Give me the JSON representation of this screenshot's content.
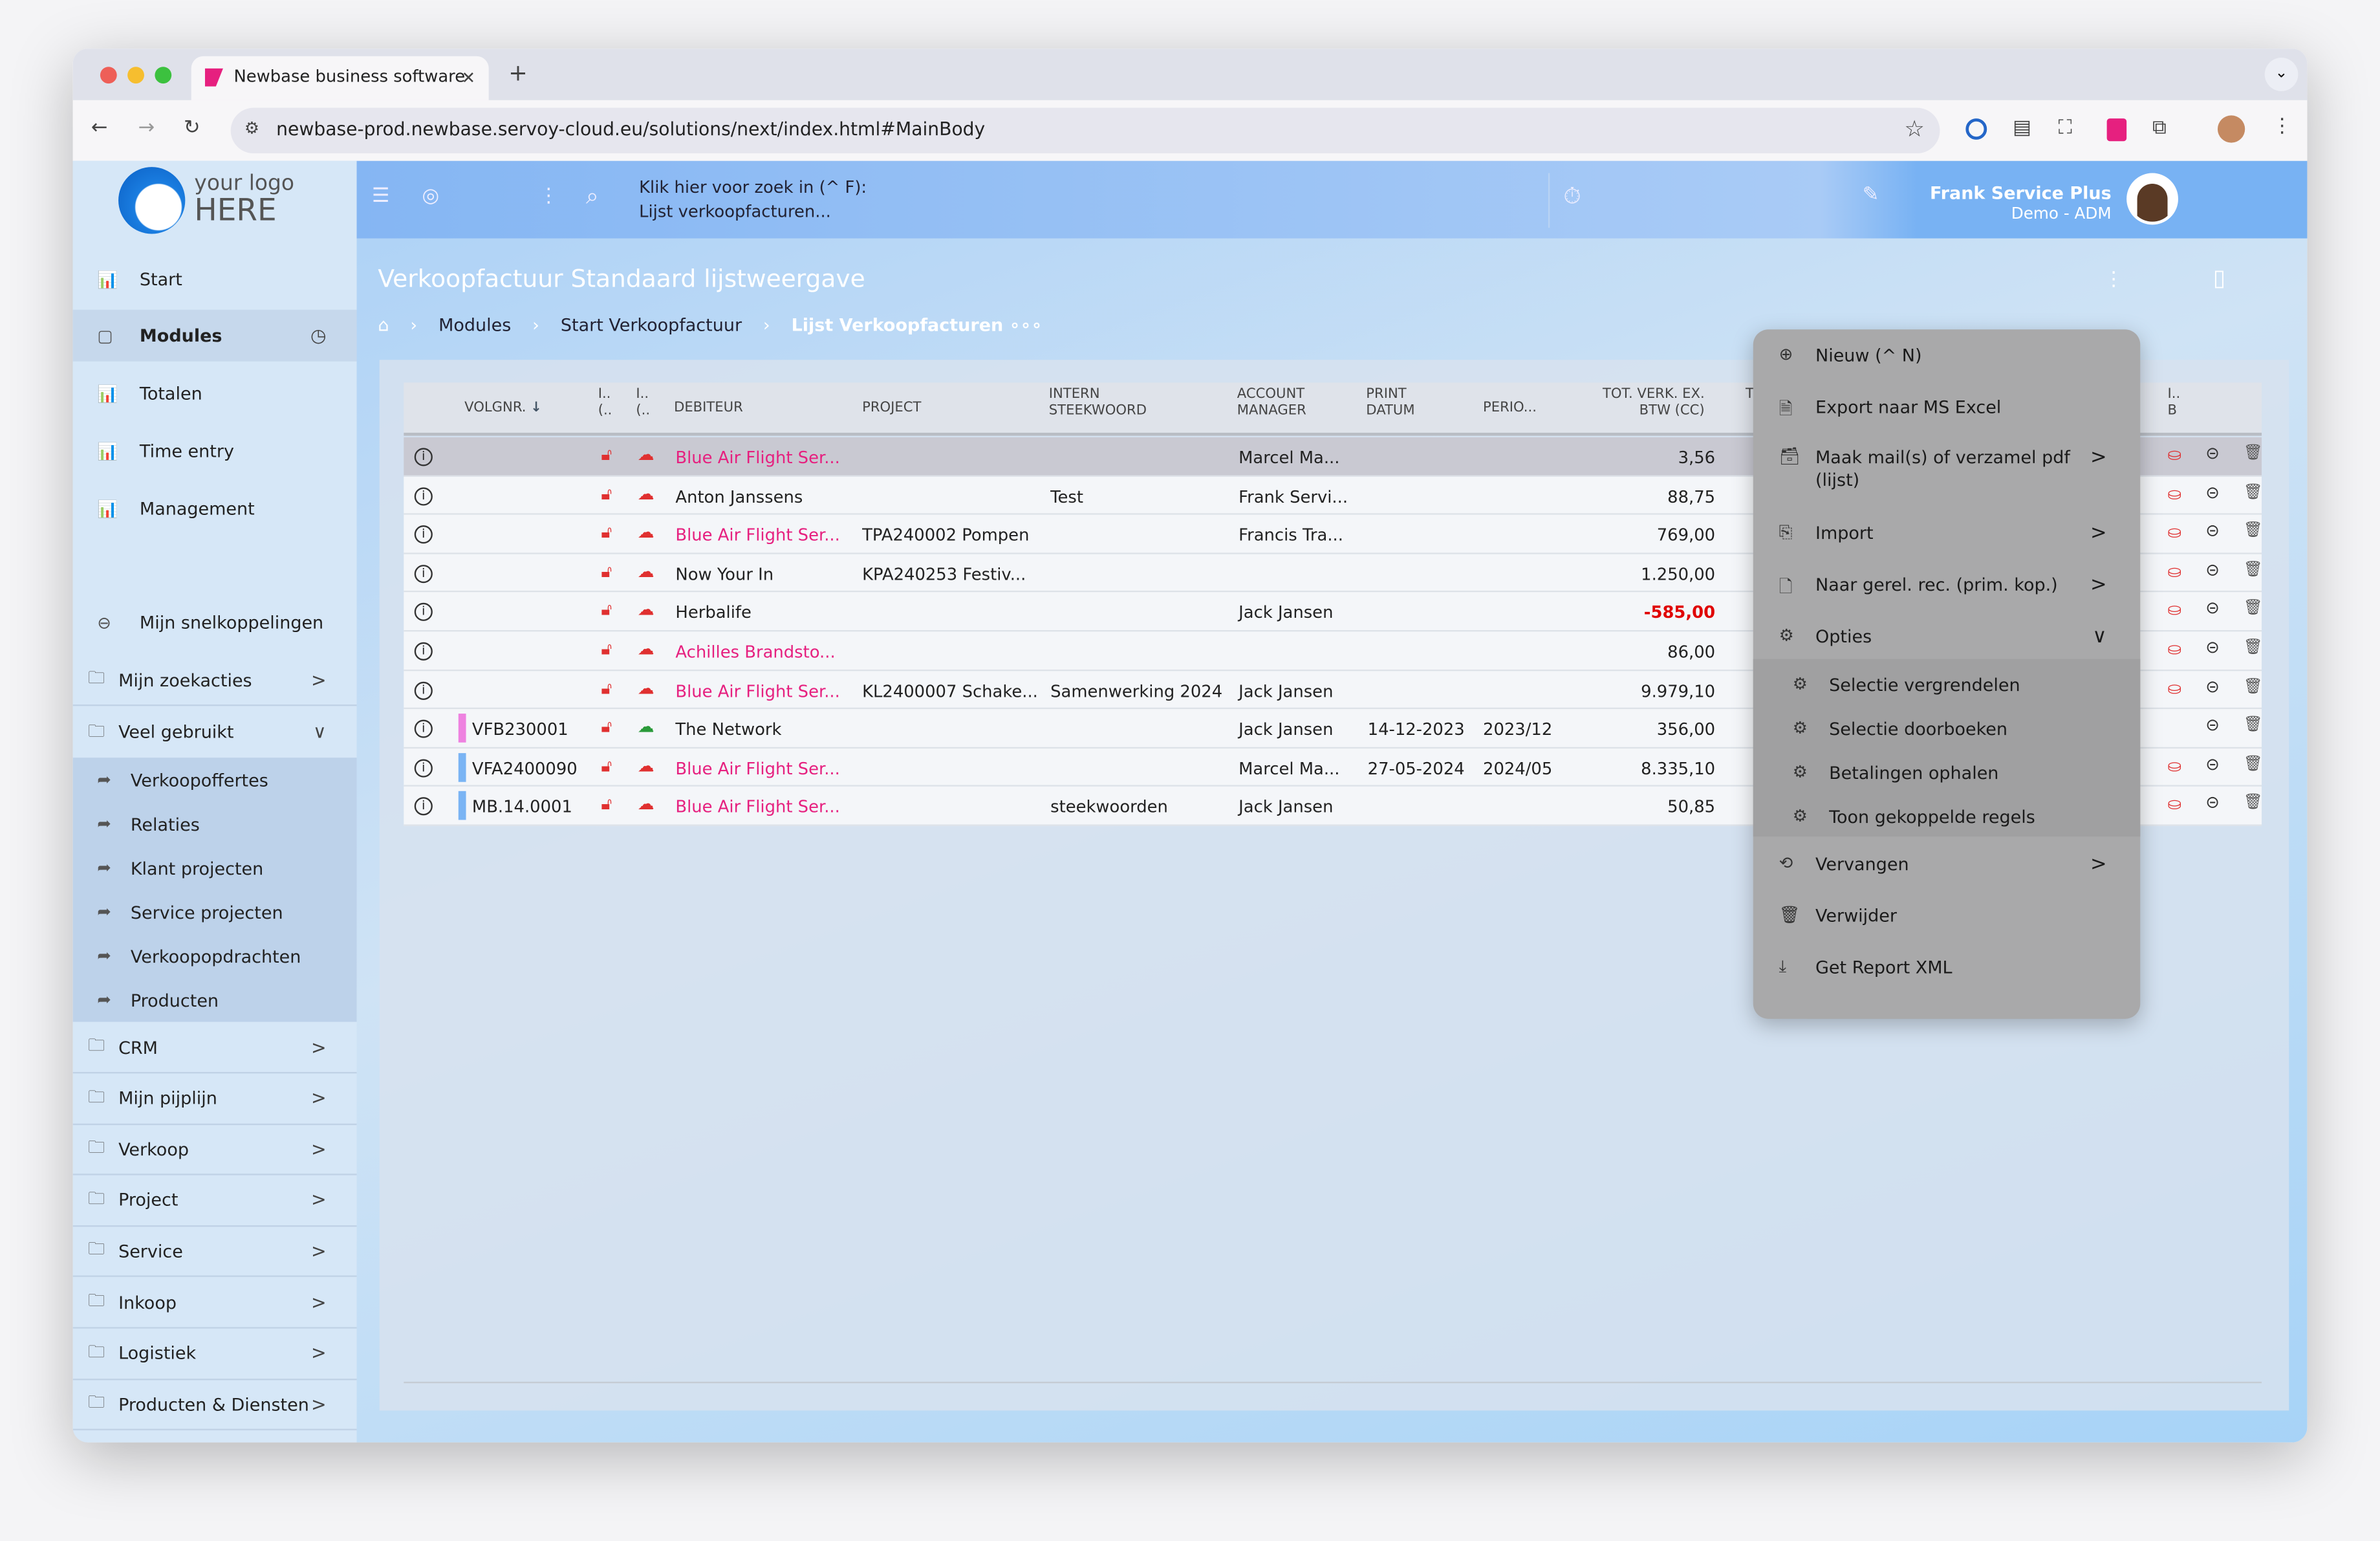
{
  "browser": {
    "tab_title": "Newbase business software",
    "url": "newbase-prod.newbase.servoy-cloud.eu/solutions/next/index.html#MainBody"
  },
  "logo": {
    "line1": "your logo",
    "line2": "HERE"
  },
  "header": {
    "search_hint": "Klik hier voor zoek in (^ F):",
    "search_context": "Lijst verkoopfacturen...",
    "user_name": "Frank Service Plus",
    "user_role": "Demo - ADM"
  },
  "sidebar": {
    "top": [
      {
        "label": "Start"
      },
      {
        "label": "Modules"
      },
      {
        "label": "Totalen"
      },
      {
        "label": "Time entry"
      },
      {
        "label": "Management"
      }
    ],
    "shortcuts": "Mijn snelkoppelingen",
    "folders": [
      {
        "label": "Mijn zoekacties"
      },
      {
        "label": "Veel gebruikt"
      }
    ],
    "sub": [
      {
        "label": "Verkoopoffertes"
      },
      {
        "label": "Relaties"
      },
      {
        "label": "Klant projecten"
      },
      {
        "label": "Service projecten"
      },
      {
        "label": "Verkoopopdrachten"
      },
      {
        "label": "Producten"
      }
    ],
    "groups": [
      {
        "label": "CRM"
      },
      {
        "label": "Mijn pijplijn"
      },
      {
        "label": "Verkoop"
      },
      {
        "label": "Project"
      },
      {
        "label": "Service"
      },
      {
        "label": "Inkoop"
      },
      {
        "label": "Logistiek"
      },
      {
        "label": "Producten & Diensten"
      }
    ]
  },
  "page": {
    "title": "Verkoopfactuur Standaard lijstweergave",
    "breadcrumb": [
      "Modules",
      "Start Verkoopfactuur",
      "Lijst Verkoopfacturen"
    ]
  },
  "table": {
    "headers": {
      "volgnr": "VOLGNR.",
      "c1a": "I..",
      "c1b": "(..",
      "c2a": "I..",
      "c2b": "(..",
      "debiteur": "DEBITEUR",
      "project": "PROJECT",
      "intern1": "INTERN",
      "intern2": "STEEKWOORD",
      "acc1": "ACCOUNT",
      "acc2": "MANAGER",
      "print1": "PRINT",
      "print2": "DATUM",
      "perio": "PERIO...",
      "tot1": "TOT. VERK. EX.",
      "tot2": "BTW (CC)",
      "t": "T",
      "ib1": "I..",
      "ib2": "B"
    },
    "rows": [
      {
        "volgnr": "",
        "debiteur": "Blue Air Flight Ser...",
        "pink": true,
        "project": "",
        "intern": "",
        "account": "Marcel Ma...",
        "print": "",
        "perio": "",
        "total": "3,56",
        "neg": false,
        "bar": "",
        "lock": "red",
        "selected": true,
        "coins": true
      },
      {
        "volgnr": "",
        "debiteur": "Anton Janssens",
        "pink": false,
        "project": "",
        "intern": "Test",
        "account": "Frank Servi...",
        "print": "",
        "perio": "",
        "total": "88,75",
        "neg": false,
        "bar": "",
        "lock": "red",
        "coins": true
      },
      {
        "volgnr": "",
        "debiteur": "Blue Air Flight Ser...",
        "pink": true,
        "project": "TPA240002 Pompen",
        "intern": "",
        "account": "Francis Tra...",
        "print": "",
        "perio": "",
        "total": "769,00",
        "neg": false,
        "bar": "",
        "lock": "red",
        "coins": true
      },
      {
        "volgnr": "",
        "debiteur": "Now Your In",
        "pink": false,
        "project": "KPA240253 Festiv...",
        "intern": "",
        "account": "",
        "print": "",
        "perio": "",
        "total": "1.250,00",
        "neg": false,
        "bar": "",
        "lock": "red",
        "coins": true
      },
      {
        "volgnr": "",
        "debiteur": "Herbalife",
        "pink": false,
        "project": "",
        "intern": "",
        "account": "Jack Jansen",
        "print": "",
        "perio": "",
        "total": "-585,00",
        "neg": true,
        "bar": "",
        "lock": "red",
        "coins": true
      },
      {
        "volgnr": "",
        "debiteur": "Achilles Brandsto...",
        "pink": true,
        "project": "",
        "intern": "",
        "account": "",
        "print": "",
        "perio": "",
        "total": "86,00",
        "neg": false,
        "bar": "",
        "lock": "red",
        "coins": true
      },
      {
        "volgnr": "",
        "debiteur": "Blue Air Flight Ser...",
        "pink": true,
        "project": "KL2400007 Schake...",
        "intern": "Samenwerking 2024",
        "account": "Jack Jansen",
        "print": "",
        "perio": "",
        "total": "9.979,10",
        "neg": false,
        "bar": "",
        "lock": "red",
        "coins": true
      },
      {
        "volgnr": "VFB230001",
        "debiteur": "The Network",
        "pink": false,
        "project": "",
        "intern": "",
        "account": "Jack Jansen",
        "print": "14-12-2023",
        "perio": "2023/12",
        "total": "356,00",
        "neg": false,
        "bar": "#ee82e0",
        "lock": "green",
        "coins": false
      },
      {
        "volgnr": "VFA2400090",
        "debiteur": "Blue Air Flight Ser...",
        "pink": true,
        "project": "",
        "intern": "",
        "account": "Marcel Ma...",
        "print": "27-05-2024",
        "perio": "2024/05",
        "total": "8.335,10",
        "neg": false,
        "bar": "#7ab4f4",
        "lock": "red",
        "coins": true
      },
      {
        "volgnr": "MB.14.0001",
        "debiteur": "Blue Air Flight Ser...",
        "pink": true,
        "project": "",
        "intern": "steekwoorden",
        "account": "Jack Jansen",
        "print": "",
        "perio": "",
        "total": "50,85",
        "neg": false,
        "bar": "#7ab4f4",
        "lock": "red",
        "coins": true
      }
    ]
  },
  "menu": {
    "items": [
      {
        "label": "Nieuw (^ N)",
        "icon": "plus-circle-icon"
      },
      {
        "label": "Export naar MS Excel",
        "icon": "xls-icon"
      },
      {
        "label": "Maak mail(s) of verzamel pdf",
        "label2": "(lijst)",
        "icon": "archive-icon"
      },
      {
        "label": "Import",
        "icon": "import-icon"
      },
      {
        "label": "Naar gerel. rec. (prim. kop.)",
        "icon": "search-doc-icon"
      },
      {
        "label": "Opties",
        "icon": "gear-drive-icon"
      }
    ],
    "sub": [
      {
        "label": "Selectie vergrendelen"
      },
      {
        "label": "Selectie doorboeken"
      },
      {
        "label": "Betalingen ophalen"
      },
      {
        "label": "Toon gekoppelde regels"
      }
    ],
    "bottom": [
      {
        "label": "Vervangen"
      },
      {
        "label": "Verwijder"
      },
      {
        "label": "Get Report XML"
      }
    ]
  },
  "colors": {
    "accent": "#e6207f",
    "negative": "#e00000",
    "header_blue": "#85b6f3",
    "menu_bg": "#a9a9aa"
  }
}
